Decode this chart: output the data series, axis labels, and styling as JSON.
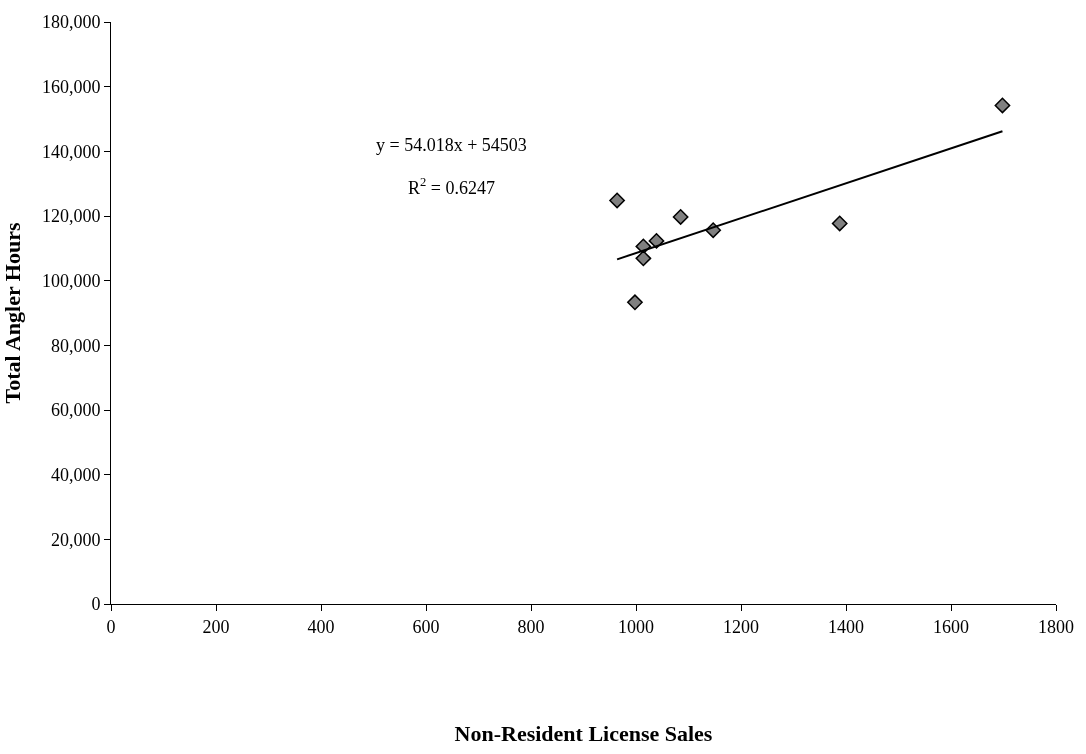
{
  "chart_data": {
    "type": "scatter",
    "xlabel": "Non-Resident License Sales",
    "ylabel": "Total Angler Hours",
    "series": [
      {
        "color": "#808080",
        "marker": "diamond",
        "x": [
          964,
          998,
          1014,
          1014,
          1039,
          1085,
          1147,
          1388,
          1698
        ],
        "values": [
          124800,
          93300,
          110600,
          106900,
          112300,
          119700,
          115600,
          117700,
          154200
        ]
      },
      {
        "type": "line",
        "color": "#000000",
        "marker": "none",
        "line_style": "solid",
        "x": [
          964,
          1698
        ],
        "values": [
          106600,
          146200
        ]
      }
    ],
    "annotations": [
      "y = 54.018x + 54503",
      "R$^{2}$ = 0.6247"
    ],
    "xlim": [
      0,
      1800
    ],
    "xticks": [
      0,
      200,
      400,
      600,
      800,
      1000,
      1200,
      1400,
      1600,
      1800
    ],
    "ylim": [
      0,
      180000
    ],
    "yticks": [
      {
        "value": 0,
        "label": "0"
      },
      {
        "value": 20000,
        "label": "20,000"
      },
      {
        "value": 40000,
        "label": "40,000"
      },
      {
        "value": 60000,
        "label": "60,000"
      },
      {
        "value": 80000,
        "label": "80,000"
      },
      {
        "value": 100000,
        "label": "100,000"
      },
      {
        "value": 120000,
        "label": "120,000"
      },
      {
        "value": 140000,
        "label": "140,000"
      },
      {
        "value": 160000,
        "label": "160,000"
      },
      {
        "value": 180000,
        "label": "180,000"
      }
    ],
    "grid": false
  }
}
